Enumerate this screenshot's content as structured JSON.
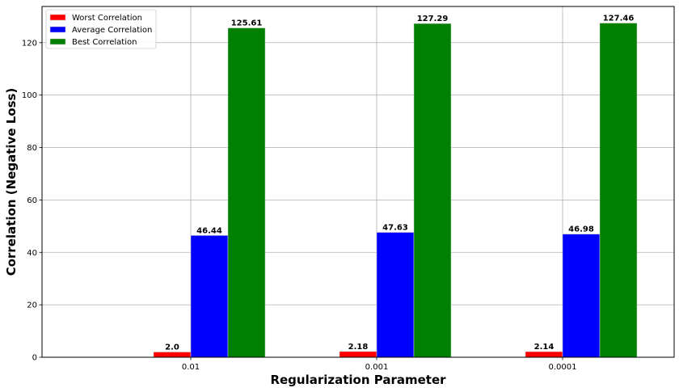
{
  "chart_data": {
    "type": "bar",
    "categories": [
      "0.01",
      "0.001",
      "0.0001"
    ],
    "series": [
      {
        "name": "Worst Correlation",
        "color": "#ff0000",
        "values": [
          2.0,
          2.18,
          2.14
        ],
        "labels": [
          "2.0",
          "2.18",
          "2.14"
        ]
      },
      {
        "name": "Average Correlation",
        "color": "#0000ff",
        "values": [
          46.44,
          47.63,
          46.98
        ],
        "labels": [
          "46.44",
          "47.63",
          "46.98"
        ]
      },
      {
        "name": "Best Correlation",
        "color": "#008000",
        "values": [
          125.61,
          127.29,
          127.46
        ],
        "labels": [
          "125.61",
          "127.29",
          "127.46"
        ]
      }
    ],
    "xlabel": "Regularization Parameter",
    "ylabel": "Correlation (Negative Loss)",
    "ylim": [
      0,
      133.8
    ],
    "yticks": [
      0,
      20,
      40,
      60,
      80,
      100,
      120
    ],
    "grid": true,
    "legend_position": "top-left"
  }
}
